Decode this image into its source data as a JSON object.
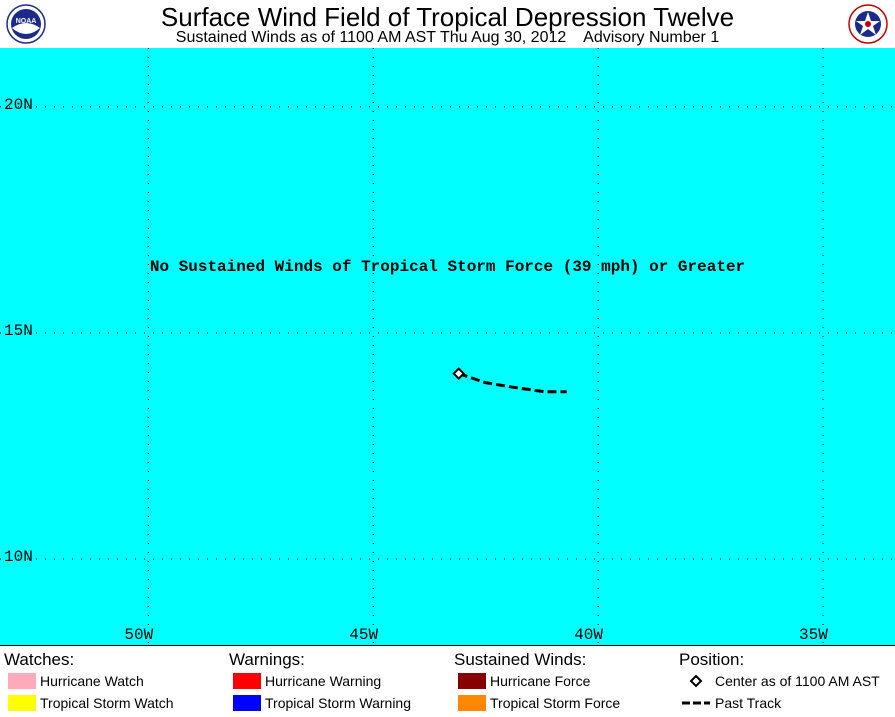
{
  "header": {
    "title": "Surface Wind Field of Tropical Depression Twelve",
    "subtitle": "Sustained Winds as of 1100 AM AST Thu Aug 30, 2012    Advisory Number 1",
    "left_logo": "noaa-logo",
    "right_logo": "national-weather-service-logo"
  },
  "map": {
    "background_color": "#00ffff",
    "grid": true,
    "lat_labels": [
      "20N",
      "15N",
      "10N"
    ],
    "lon_labels": [
      "50W",
      "45W",
      "40W",
      "35W"
    ],
    "extent": {
      "lon_min": -53.3,
      "lon_max": -33.4,
      "lat_min": 8.1,
      "lat_max": 21.3
    },
    "message": "No Sustained Winds of Tropical Storm Force (39 mph) or Greater",
    "storm_center": {
      "lat": 14.1,
      "lon": -43.1
    },
    "past_track": [
      {
        "lat": 14.1,
        "lon": -43.1
      },
      {
        "lat": 13.9,
        "lon": -42.5
      },
      {
        "lat": 13.8,
        "lon": -41.9
      },
      {
        "lat": 13.7,
        "lon": -41.2
      },
      {
        "lat": 13.7,
        "lon": -40.7
      }
    ]
  },
  "legend": {
    "watches": {
      "heading": "Watches:",
      "items": [
        {
          "label": "Hurricane Watch",
          "color": "#ffaabb"
        },
        {
          "label": "Tropical Storm Watch",
          "color": "#ffff00"
        }
      ]
    },
    "warnings": {
      "heading": "Warnings:",
      "items": [
        {
          "label": "Hurricane Warning",
          "color": "#ff0000"
        },
        {
          "label": "Tropical Storm Warning",
          "color": "#0000ff"
        }
      ]
    },
    "winds": {
      "heading": "Sustained Winds:",
      "items": [
        {
          "label": "Hurricane Force",
          "color": "#880000"
        },
        {
          "label": "Tropical Storm Force",
          "color": "#ff8800"
        }
      ]
    },
    "position": {
      "heading": "Position:",
      "items": [
        {
          "label": "Center as of 1100 AM AST",
          "icon": "diamond-icon"
        },
        {
          "label": "Past Track",
          "icon": "dashed-line-icon"
        }
      ]
    }
  }
}
